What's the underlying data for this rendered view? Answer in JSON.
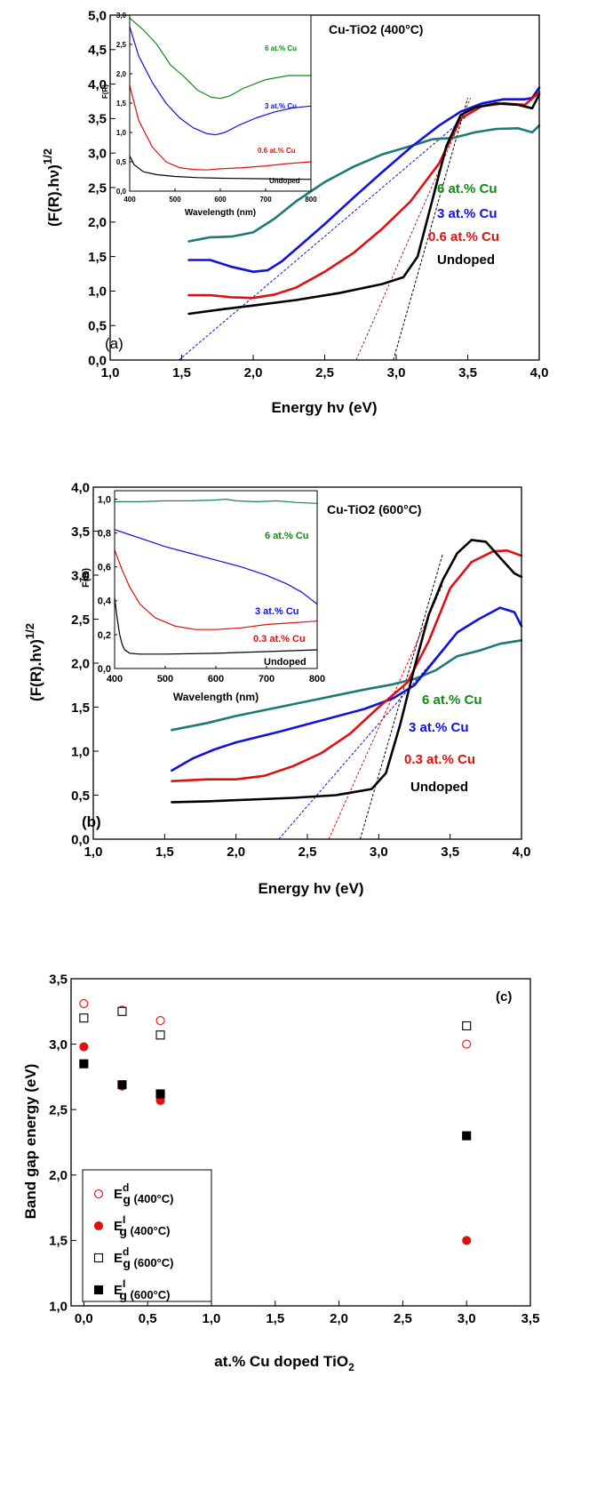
{
  "chart_data": [
    {
      "type": "line",
      "panel": "(a)",
      "title": "Cu-TiO2 (400°C)",
      "xlabel": "Energy hν (eV)",
      "ylabel": "(F(R).hν)^1/2",
      "xlim": [
        1.0,
        4.0
      ],
      "ylim": [
        0.0,
        5.0
      ],
      "xticks": [
        "1,0",
        "1,5",
        "2,0",
        "2,5",
        "3,0",
        "3,5",
        "4,0"
      ],
      "yticks": [
        "0,0",
        "0,5",
        "1,0",
        "1,5",
        "2,0",
        "2,5",
        "3,0",
        "3,5",
        "4,0",
        "4,5",
        "5,0"
      ],
      "series": [
        {
          "name": "6 at.% Cu",
          "color": "#1a7a74",
          "x": [
            1.55,
            1.7,
            1.85,
            2.0,
            2.15,
            2.3,
            2.5,
            2.7,
            2.9,
            3.1,
            3.25,
            3.4,
            3.55,
            3.7,
            3.85,
            3.95,
            4.0
          ],
          "y": [
            1.72,
            1.78,
            1.79,
            1.85,
            2.05,
            2.3,
            2.58,
            2.8,
            2.98,
            3.1,
            3.2,
            3.22,
            3.3,
            3.35,
            3.36,
            3.3,
            3.4
          ]
        },
        {
          "name": "3 at.% Cu",
          "color": "#1010e0",
          "x": [
            1.55,
            1.7,
            1.85,
            2.0,
            2.1,
            2.2,
            2.35,
            2.5,
            2.7,
            2.9,
            3.1,
            3.3,
            3.45,
            3.6,
            3.75,
            3.9,
            3.95,
            4.0
          ],
          "y": [
            1.45,
            1.45,
            1.35,
            1.28,
            1.3,
            1.43,
            1.7,
            1.97,
            2.35,
            2.72,
            3.08,
            3.4,
            3.6,
            3.72,
            3.78,
            3.78,
            3.8,
            3.95
          ]
        },
        {
          "name": "0.6 at.% Cu",
          "color": "#e01010",
          "x": [
            1.55,
            1.7,
            1.85,
            2.0,
            2.15,
            2.3,
            2.5,
            2.7,
            2.9,
            3.1,
            3.3,
            3.45,
            3.6,
            3.75,
            3.9,
            4.0
          ],
          "y": [
            0.94,
            0.94,
            0.91,
            0.9,
            0.95,
            1.05,
            1.28,
            1.55,
            1.9,
            2.3,
            2.85,
            3.5,
            3.68,
            3.72,
            3.7,
            3.88
          ]
        },
        {
          "name": "Undoped",
          "color": "#000000",
          "x": [
            1.55,
            1.8,
            2.0,
            2.3,
            2.6,
            2.9,
            3.05,
            3.15,
            3.25,
            3.35,
            3.45,
            3.55,
            3.7,
            3.85,
            3.95,
            4.0
          ],
          "y": [
            0.67,
            0.74,
            0.79,
            0.87,
            0.97,
            1.1,
            1.2,
            1.5,
            2.3,
            3.1,
            3.55,
            3.66,
            3.72,
            3.7,
            3.65,
            3.85
          ]
        }
      ],
      "tangents": [
        {
          "color": "#1010e0",
          "x": [
            1.48,
            3.5
          ],
          "y": [
            0.0,
            3.55
          ]
        },
        {
          "color": "#e01010",
          "x": [
            2.72,
            3.52
          ],
          "y": [
            0.0,
            3.8
          ]
        },
        {
          "color": "#000000",
          "x": [
            2.98,
            3.5
          ],
          "y": [
            0.0,
            3.8
          ]
        }
      ],
      "inset": {
        "xlabel": "Wavelength (nm)",
        "ylabel": "F(R)",
        "xlim": [
          400,
          800
        ],
        "ylim": [
          0.0,
          3.0
        ],
        "xticks": [
          "400",
          "500",
          "600",
          "700",
          "800"
        ],
        "yticks": [
          "0,0",
          "0,5",
          "1,0",
          "1,5",
          "2,0",
          "2,5",
          "3,0"
        ],
        "series": [
          {
            "name": "6 at.% Cu",
            "color": "#138a13",
            "x": [
              400,
              430,
              460,
              490,
              520,
              550,
              580,
              600,
              620,
              650,
              700,
              750,
              800
            ],
            "y": [
              2.95,
              2.75,
              2.5,
              2.15,
              1.95,
              1.72,
              1.6,
              1.58,
              1.62,
              1.75,
              1.9,
              1.97,
              1.97
            ]
          },
          {
            "name": "3 at.% Cu",
            "color": "#1010e0",
            "x": [
              400,
              420,
              450,
              480,
              510,
              540,
              570,
              590,
              610,
              640,
              680,
              720,
              760,
              800
            ],
            "y": [
              2.8,
              2.3,
              1.85,
              1.5,
              1.25,
              1.08,
              0.98,
              0.96,
              1.0,
              1.12,
              1.25,
              1.35,
              1.42,
              1.45
            ]
          },
          {
            "name": "0.6 at.% Cu",
            "color": "#e01010",
            "x": [
              400,
              420,
              450,
              480,
              510,
              540,
              570,
              600,
              650,
              700,
              750,
              800
            ],
            "y": [
              1.8,
              1.2,
              0.75,
              0.5,
              0.4,
              0.37,
              0.36,
              0.38,
              0.4,
              0.43,
              0.47,
              0.5
            ]
          },
          {
            "name": "Undoped",
            "color": "#000000",
            "x": [
              400,
              410,
              430,
              460,
              500,
              550,
              600,
              700,
              800
            ],
            "y": [
              0.6,
              0.45,
              0.33,
              0.28,
              0.25,
              0.23,
              0.22,
              0.21,
              0.2
            ]
          }
        ]
      }
    },
    {
      "type": "line",
      "panel": "(b)",
      "title": "Cu-TiO2 (600°C)",
      "xlabel": "Energy hν (eV)",
      "ylabel": "(F(R).hν)^1/2",
      "xlim": [
        1.0,
        4.0
      ],
      "ylim": [
        0.0,
        4.0
      ],
      "xticks": [
        "1,0",
        "1,5",
        "2,0",
        "2,5",
        "3,0",
        "3,5",
        "4,0"
      ],
      "yticks": [
        "0,0",
        "0,5",
        "1,0",
        "1,5",
        "2,0",
        "2,5",
        "3,0",
        "3,5",
        "4,0"
      ],
      "series": [
        {
          "name": "6 at.% Cu",
          "color": "#1a7a74",
          "x": [
            1.55,
            1.8,
            2.0,
            2.3,
            2.6,
            2.9,
            3.1,
            3.25,
            3.4,
            3.55,
            3.7,
            3.85,
            4.0
          ],
          "y": [
            1.24,
            1.32,
            1.4,
            1.5,
            1.6,
            1.7,
            1.76,
            1.82,
            1.92,
            2.08,
            2.14,
            2.22,
            2.26
          ]
        },
        {
          "name": "3 at.% Cu",
          "color": "#1010e0",
          "x": [
            1.55,
            1.7,
            1.85,
            2.0,
            2.3,
            2.6,
            2.9,
            3.1,
            3.25,
            3.4,
            3.55,
            3.7,
            3.85,
            3.95,
            4.0
          ],
          "y": [
            0.78,
            0.92,
            1.02,
            1.1,
            1.22,
            1.35,
            1.48,
            1.6,
            1.75,
            2.05,
            2.35,
            2.5,
            2.63,
            2.58,
            2.42
          ]
        },
        {
          "name": "0.3 at.% Cu",
          "color": "#e01010",
          "x": [
            1.55,
            1.8,
            2.0,
            2.2,
            2.4,
            2.6,
            2.8,
            3.0,
            3.2,
            3.35,
            3.5,
            3.65,
            3.8,
            3.9,
            4.0
          ],
          "y": [
            0.66,
            0.68,
            0.68,
            0.72,
            0.83,
            0.98,
            1.2,
            1.5,
            1.78,
            2.25,
            2.85,
            3.15,
            3.27,
            3.28,
            3.22
          ]
        },
        {
          "name": "Undoped",
          "color": "#000000",
          "x": [
            1.55,
            1.8,
            2.1,
            2.4,
            2.7,
            2.95,
            3.05,
            3.15,
            3.25,
            3.35,
            3.45,
            3.55,
            3.65,
            3.75,
            3.85,
            3.95,
            4.0
          ],
          "y": [
            0.42,
            0.43,
            0.45,
            0.47,
            0.5,
            0.57,
            0.75,
            1.3,
            1.95,
            2.55,
            2.95,
            3.25,
            3.4,
            3.38,
            3.2,
            3.02,
            2.98
          ]
        }
      ],
      "tangents": [
        {
          "color": "#1010e0",
          "x": [
            2.3,
            3.5
          ],
          "y": [
            0.0,
            2.25
          ]
        },
        {
          "color": "#e01010",
          "x": [
            2.65,
            3.45
          ],
          "y": [
            0.0,
            2.9
          ]
        },
        {
          "color": "#000000",
          "x": [
            2.87,
            3.45
          ],
          "y": [
            0.0,
            3.25
          ]
        }
      ],
      "inset": {
        "xlabel": "Wavelength (nm)",
        "ylabel": "F(R)",
        "xlim": [
          400,
          800
        ],
        "ylim": [
          0.0,
          1.05
        ],
        "xticks": [
          "400",
          "500",
          "600",
          "700",
          "800"
        ],
        "yticks": [
          "0,0",
          "0,2",
          "0,4",
          "0,6",
          "0,8",
          "1,0"
        ],
        "series": [
          {
            "name": "6 at.% Cu",
            "color": "#1a7a74",
            "x": [
              400,
              450,
              500,
              550,
              600,
              620,
              640,
              680,
              720,
              760,
              800
            ],
            "y": [
              0.985,
              0.985,
              0.99,
              0.99,
              0.995,
              1.0,
              0.99,
              0.985,
              0.99,
              0.98,
              0.975
            ]
          },
          {
            "name": "3 at.% Cu",
            "color": "#1010e0",
            "x": [
              400,
              430,
              460,
              500,
              550,
              600,
              650,
              700,
              740,
              770,
              800
            ],
            "y": [
              0.82,
              0.79,
              0.76,
              0.72,
              0.68,
              0.64,
              0.6,
              0.55,
              0.5,
              0.45,
              0.38
            ]
          },
          {
            "name": "0.3 at.% Cu",
            "color": "#e01010",
            "x": [
              400,
              415,
              430,
              450,
              480,
              520,
              560,
              600,
              650,
              700,
              750,
              800
            ],
            "y": [
              0.7,
              0.58,
              0.48,
              0.38,
              0.3,
              0.25,
              0.23,
              0.23,
              0.24,
              0.26,
              0.27,
              0.28
            ]
          },
          {
            "name": "Undoped",
            "color": "#000000",
            "x": [
              400,
              405,
              410,
              415,
              420,
              430,
              450,
              500,
              600,
              700,
              800
            ],
            "y": [
              0.42,
              0.3,
              0.2,
              0.14,
              0.11,
              0.09,
              0.085,
              0.085,
              0.09,
              0.1,
              0.11
            ]
          }
        ]
      }
    },
    {
      "type": "scatter",
      "panel": "(c)",
      "xlabel": "at.% Cu doped TiO2",
      "ylabel": "Band gap energy (eV)",
      "xlim": [
        -0.1,
        3.5
      ],
      "ylim": [
        1.0,
        3.5
      ],
      "xticks": [
        "0,0",
        "0,5",
        "1,0",
        "1,5",
        "2,0",
        "2,5",
        "3,0",
        "3,5"
      ],
      "yticks": [
        "1,0",
        "1,5",
        "2,0",
        "2,5",
        "3,0",
        "3,5"
      ],
      "series": [
        {
          "name": "Ed g (400°C)",
          "marker": "open-circle",
          "color": "#e01010",
          "x": [
            0.0,
            0.3,
            0.6,
            3.0
          ],
          "y": [
            3.31,
            3.26,
            3.18,
            3.0
          ]
        },
        {
          "name": "EI g (400°C)",
          "marker": "filled-circle",
          "color": "#e01010",
          "x": [
            0.0,
            0.3,
            0.6,
            3.0
          ],
          "y": [
            2.98,
            2.68,
            2.57,
            1.5
          ]
        },
        {
          "name": "Ed g (600°C)",
          "marker": "open-square",
          "color": "#000000",
          "x": [
            0.0,
            0.3,
            0.6,
            3.0
          ],
          "y": [
            3.2,
            3.25,
            3.07,
            3.14
          ]
        },
        {
          "name": "EI g (600°C)",
          "marker": "filled-square",
          "color": "#000000",
          "x": [
            0.0,
            0.3,
            0.6,
            3.0
          ],
          "y": [
            2.85,
            2.69,
            2.62,
            2.3
          ]
        }
      ],
      "legend": [
        {
          "main": "E",
          "sup": "d",
          "sub": "g",
          "rest": " (400°C)"
        },
        {
          "main": "E",
          "sup": "I",
          "sub": "g",
          "rest": " (400°C)"
        },
        {
          "main": "E",
          "sup": "d",
          "sub": "g",
          "rest": " (600°C)"
        },
        {
          "main": "E",
          "sup": "I",
          "sub": "g",
          "rest": " (600°C)"
        }
      ]
    }
  ]
}
